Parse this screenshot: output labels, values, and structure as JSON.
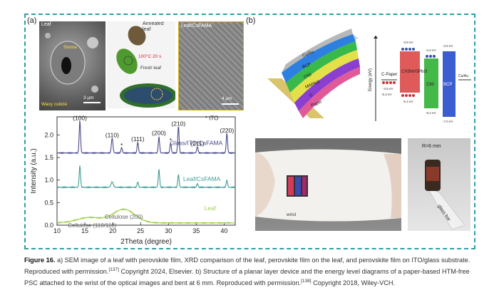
{
  "figure": {
    "panel_a_label": "(a)",
    "panel_b_label": "(b)",
    "sem_leaf": {
      "corner_label": "Leaf",
      "stoma_label": "Stoma",
      "scale_label": "3 μm",
      "cuticle_label": "Waxy cuticle"
    },
    "photos": {
      "annealed_label": "Annealed leaf",
      "temp_label": "100°C 20 s",
      "fresh_label": "Fresh leaf"
    },
    "sem_film": {
      "corner_label": "Leaf/CsFAMA",
      "scale_label": "4 μm"
    },
    "device_stack": {
      "layers": [
        "Cu/Au",
        "BCP",
        "C60",
        "MAPbI3",
        "C",
        "Paper"
      ]
    },
    "energy_diagram": {
      "ylabel": "Energy (eV)",
      "labels": {
        "cpaper": "C-Paper",
        "perovskite": "CH3NH3PbI3",
        "c60": "C60",
        "bcp": "BCP",
        "electrode": "Cu/Au",
        "l1": "-3.9 eV",
        "l2": "-4.5 eV",
        "l3": "-5.4 eV",
        "l4": "-4.2 eV",
        "l5": "-6.2 eV",
        "l6": "-3.5 eV",
        "l7": "-7.0 eV",
        "l8": "-5.4 eV"
      }
    },
    "wrist_photo": {
      "label": "wrist"
    },
    "bend_photo": {
      "radius_label": "R=6 mm",
      "bar_label": "glass bar"
    }
  },
  "chart_data": {
    "type": "line",
    "xlabel": "2Theta (degree)",
    "ylabel": "Intensity (a.u.)",
    "xlim": [
      10,
      42
    ],
    "ylim": [
      0.0,
      2.4
    ],
    "xticks": [
      10,
      15,
      20,
      25,
      30,
      35,
      40
    ],
    "yticks": [
      0.0,
      0.5,
      1.0,
      1.5,
      2.0
    ],
    "legend_note": "* ITO",
    "series": [
      {
        "name": "Glass/ITO/CsFAMA",
        "color": "#4a4a8a",
        "baseline": 1.6,
        "peaks": [
          [
            14.1,
            0.72,
            0.12
          ],
          [
            19.9,
            0.33,
            0.14
          ],
          [
            21.6,
            0.12,
            0.12
          ],
          [
            24.5,
            0.24,
            0.12
          ],
          [
            28.3,
            0.36,
            0.12
          ],
          [
            30.4,
            0.22,
            0.12
          ],
          [
            31.8,
            0.6,
            0.12
          ],
          [
            35.2,
            0.14,
            0.12
          ],
          [
            40.5,
            0.44,
            0.12
          ]
        ]
      },
      {
        "name": "Leaf/CsFAMA",
        "color": "#3f9c97",
        "baseline": 0.84,
        "peaks": [
          [
            14.1,
            0.48,
            0.12
          ],
          [
            19.9,
            0.12,
            0.2
          ],
          [
            24.5,
            0.12,
            0.12
          ],
          [
            28.3,
            0.4,
            0.12
          ],
          [
            31.8,
            0.28,
            0.12
          ],
          [
            35.2,
            0.08,
            0.12
          ],
          [
            40.5,
            0.16,
            0.12
          ]
        ]
      },
      {
        "name": "Leaf",
        "color": "#9fcf4a",
        "baseline": 0.05,
        "peaks": [
          [
            15.8,
            0.12,
            2.2
          ],
          [
            22.0,
            0.3,
            2.0
          ]
        ]
      }
    ],
    "peak_labels": [
      {
        "text": "(100)",
        "x": 14.1,
        "y": 2.33
      },
      {
        "text": "(110)",
        "x": 19.9,
        "y": 1.95
      },
      {
        "text": "*",
        "x": 21.6,
        "y": 1.72
      },
      {
        "text": "(111)",
        "x": 24.5,
        "y": 1.86
      },
      {
        "text": "(200)",
        "x": 28.3,
        "y": 2.0
      },
      {
        "text": "*",
        "x": 30.4,
        "y": 1.83
      },
      {
        "text": "(210)",
        "x": 31.8,
        "y": 2.2
      },
      {
        "text": "(211)",
        "x": 35.2,
        "y": 1.76
      },
      {
        "text": "(220)",
        "x": 40.5,
        "y": 2.05
      }
    ],
    "annotations": [
      {
        "text": "Cellulose (200)",
        "x": 22.0,
        "y": 0.14
      },
      {
        "text": "Cellulose (110/110)",
        "x": 16.3,
        "y": -0.05
      }
    ]
  },
  "caption": {
    "figure_label": "Figure 16.",
    "part1": " a) SEM image of a leaf with perovskite film, XRD comparison of the leaf, perovskite film on the leaf, and perovskite film on ITO/glass substrate. Reproduced with permission.",
    "ref1": "[137]",
    "part2": " Copyright 2024, Elsevier. b) Structure of a planar layer device and the energy level diagrams of a paper-based HTM-free PSC attached to the wrist of the optical images and bent at 6 mm. Reproduced with permission.",
    "ref2": "[138]",
    "part3": " Copyright 2018, Wiley-VCH."
  }
}
